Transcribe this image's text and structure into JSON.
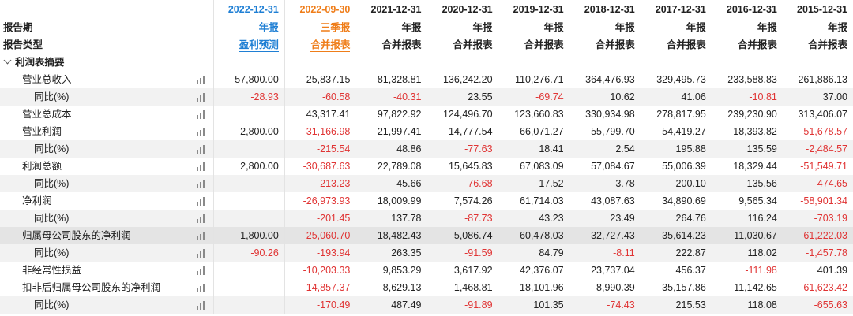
{
  "header": {
    "dates": [
      "2022-12-31",
      "2022-09-30",
      "2021-12-31",
      "2020-12-31",
      "2019-12-31",
      "2018-12-31",
      "2017-12-31",
      "2016-12-31",
      "2015-12-31"
    ],
    "period_label": "报告期",
    "periods": [
      "年报",
      "三季报",
      "年报",
      "年报",
      "年报",
      "年报",
      "年报",
      "年报",
      "年报"
    ],
    "type_label": "报告类型",
    "types": [
      "盈利预测",
      "合并报表",
      "合并报表",
      "合并报表",
      "合并报表",
      "合并报表",
      "合并报表",
      "合并报表",
      "合并报表"
    ]
  },
  "section": {
    "title": "利润表摘要"
  },
  "rows": [
    {
      "label": "营业总收入",
      "values": [
        "57,800.00",
        "25,837.15",
        "81,328.81",
        "136,242.20",
        "110,276.71",
        "364,476.93",
        "329,495.73",
        "233,588.83",
        "261,886.13"
      ]
    },
    {
      "label": "同比(%)",
      "values": [
        "-28.93",
        "-60.58",
        "-40.31",
        "23.55",
        "-69.74",
        "10.62",
        "41.06",
        "-10.81",
        "37.00"
      ]
    },
    {
      "label": "营业总成本",
      "values": [
        "",
        "43,317.41",
        "97,822.92",
        "124,496.70",
        "123,660.83",
        "330,934.98",
        "278,817.95",
        "239,230.90",
        "313,406.07"
      ]
    },
    {
      "label": "营业利润",
      "values": [
        "2,800.00",
        "-31,166.98",
        "21,997.41",
        "14,777.54",
        "66,071.27",
        "55,799.70",
        "54,419.27",
        "18,393.82",
        "-51,678.57"
      ]
    },
    {
      "label": "同比(%)",
      "values": [
        "",
        "-215.54",
        "48.86",
        "-77.63",
        "18.41",
        "2.54",
        "195.88",
        "135.59",
        "-2,484.57"
      ]
    },
    {
      "label": "利润总额",
      "values": [
        "2,800.00",
        "-30,687.63",
        "22,789.08",
        "15,645.83",
        "67,083.09",
        "57,084.67",
        "55,006.39",
        "18,329.44",
        "-51,549.71"
      ]
    },
    {
      "label": "同比(%)",
      "values": [
        "",
        "-213.23",
        "45.66",
        "-76.68",
        "17.52",
        "3.78",
        "200.10",
        "135.56",
        "-474.65"
      ]
    },
    {
      "label": "净利润",
      "values": [
        "",
        "-26,973.93",
        "18,009.99",
        "7,574.26",
        "61,714.03",
        "43,087.63",
        "34,890.69",
        "9,565.34",
        "-58,901.34"
      ]
    },
    {
      "label": "同比(%)",
      "values": [
        "",
        "-201.45",
        "137.78",
        "-87.73",
        "43.23",
        "23.49",
        "264.76",
        "116.24",
        "-703.19"
      ]
    },
    {
      "label": "归属母公司股东的净利润",
      "values": [
        "1,800.00",
        "-25,060.70",
        "18,482.43",
        "5,086.74",
        "60,478.03",
        "32,727.43",
        "35,614.23",
        "11,030.67",
        "-61,222.03"
      ]
    },
    {
      "label": "同比(%)",
      "values": [
        "-90.26",
        "-193.94",
        "263.35",
        "-91.59",
        "84.79",
        "-8.11",
        "222.87",
        "118.02",
        "-1,457.78"
      ]
    },
    {
      "label": "非经常性损益",
      "values": [
        "",
        "-10,203.33",
        "9,853.29",
        "3,617.92",
        "42,376.07",
        "23,737.04",
        "456.37",
        "-111.98",
        "401.39"
      ]
    },
    {
      "label": "扣非后归属母公司股东的净利润",
      "values": [
        "",
        "-14,857.37",
        "8,629.13",
        "1,468.81",
        "18,101.96",
        "8,990.39",
        "35,157.86",
        "11,142.65",
        "-61,623.42"
      ]
    },
    {
      "label": "同比(%)",
      "values": [
        "",
        "-170.49",
        "487.49",
        "-91.89",
        "101.35",
        "-74.43",
        "215.53",
        "118.08",
        "-655.63"
      ]
    }
  ],
  "colors": {
    "forecast": "#1f7fd4",
    "quarter": "#ef7d19",
    "negative": "#e03434"
  },
  "icons": {
    "row_chart": "bar-chart-icon",
    "collapse": "chevron-down-icon"
  }
}
